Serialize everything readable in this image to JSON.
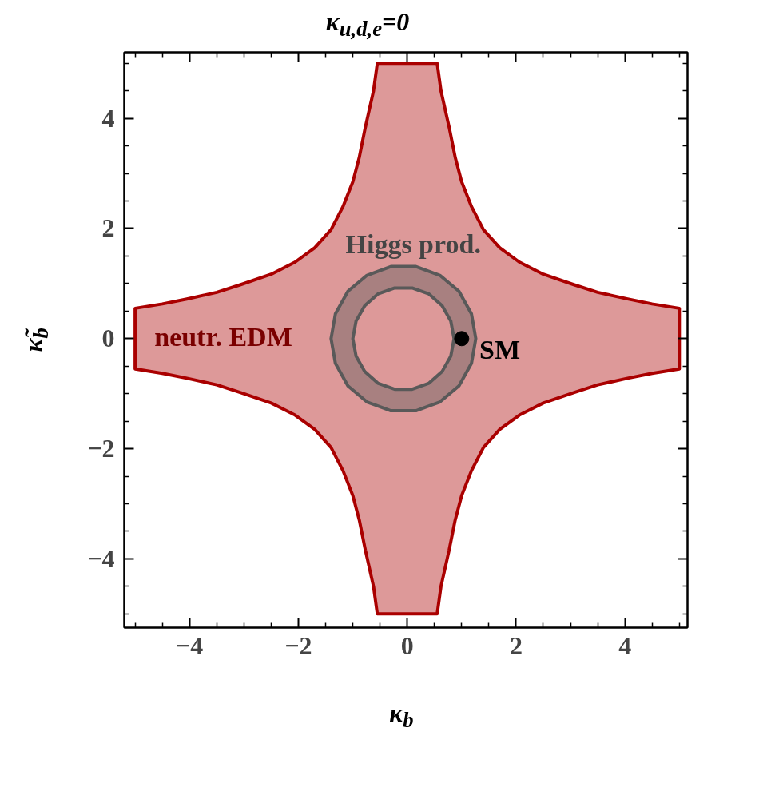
{
  "chart_data": {
    "type": "area",
    "title": "κ$_{u,d,e}$=0",
    "xlabel": "κ$_{b}$",
    "ylabel": "κ̃$_{b}$",
    "xlim": [
      -5.2,
      5.15
    ],
    "ylim": [
      -5.25,
      5.2
    ],
    "xticks": [
      {
        "value": -4,
        "label": "−4"
      },
      {
        "value": -2,
        "label": "−2"
      },
      0,
      2,
      4,
      {
        "value": -5,
        "label": null
      },
      {
        "value": -4.5,
        "label": null
      },
      {
        "value": -3.5,
        "label": null
      },
      {
        "value": -3,
        "label": null
      },
      {
        "value": -2.5,
        "label": null
      },
      {
        "value": -1.5,
        "label": null
      },
      {
        "value": -1,
        "label": null
      },
      {
        "value": -0.5,
        "label": null
      },
      {
        "value": 0.5,
        "label": null
      },
      {
        "value": 1,
        "label": null
      },
      {
        "value": 1.5,
        "label": null
      },
      {
        "value": 2.5,
        "label": null
      },
      {
        "value": 3,
        "label": null
      },
      {
        "value": 3.5,
        "label": null
      },
      {
        "value": 4.5,
        "label": null
      },
      {
        "value": 5,
        "label": null
      }
    ],
    "yticks": [
      {
        "value": -4,
        "label": "−4"
      },
      {
        "value": -2,
        "label": "−2"
      },
      0,
      2,
      4,
      {
        "value": -5,
        "label": null
      },
      {
        "value": -4.5,
        "label": null
      },
      {
        "value": -3.5,
        "label": null
      },
      {
        "value": -3,
        "label": null
      },
      {
        "value": -2.5,
        "label": null
      },
      {
        "value": -1.5,
        "label": null
      },
      {
        "value": -1,
        "label": null
      },
      {
        "value": -0.5,
        "label": null
      },
      {
        "value": 0.5,
        "label": null
      },
      {
        "value": 1,
        "label": null
      },
      {
        "value": 1.5,
        "label": null
      },
      {
        "value": 2.5,
        "label": null
      },
      {
        "value": 3,
        "label": null
      },
      {
        "value": 3.5,
        "label": null
      },
      {
        "value": 4.5,
        "label": null
      },
      {
        "value": 5,
        "label": null
      }
    ],
    "grid": false,
    "series": [
      {
        "color": "#aa0000",
        "x": [
          -0.55,
          0.55,
          0.62,
          0.77,
          0.88,
          1.0,
          1.18,
          1.4,
          1.7,
          2.06,
          2.5,
          3.06,
          3.5,
          4.05,
          4.5,
          5,
          5,
          4.5,
          4.05,
          3.5,
          3.06,
          2.5,
          2.06,
          1.7,
          1.4,
          1.18,
          1.0,
          0.88,
          0.77,
          0.62,
          0.55,
          -0.55,
          -0.62,
          -0.77,
          -0.88,
          -1.0,
          -1.18,
          -1.4,
          -1.7,
          -2.06,
          -2.5,
          -3.06,
          -3.5,
          -4.05,
          -4.5,
          -5,
          -5,
          -4.5,
          -4.05,
          -3.5,
          -3.06,
          -2.5,
          -2.06,
          -1.7,
          -1.4,
          -1.18,
          -1.0,
          -0.88,
          -0.77,
          -0.62
        ],
        "values": [
          5,
          5,
          4.5,
          3.84,
          3.3,
          2.85,
          2.4,
          1.98,
          1.65,
          1.39,
          1.17,
          0.98,
          0.84,
          0.72,
          0.63,
          0.55,
          -0.55,
          -0.63,
          -0.72,
          -0.84,
          -0.98,
          -1.17,
          -1.39,
          -1.65,
          -1.98,
          -2.4,
          -2.85,
          -3.3,
          -3.84,
          -4.5,
          -5,
          -5,
          -4.5,
          -3.84,
          -3.3,
          -2.85,
          -2.4,
          -1.98,
          -1.65,
          -1.39,
          -1.17,
          -0.98,
          -0.84,
          -0.72,
          -0.63,
          -0.55,
          0.55,
          0.63,
          0.72,
          0.84,
          0.98,
          1.17,
          1.39,
          1.65,
          1.98,
          2.4,
          2.85,
          3.3,
          3.84,
          4.5
        ]
      },
      {
        "color": "#595959",
        "x": [
          1.26,
          1.18,
          0.95,
          0.6,
          0.16,
          -0.3,
          -0.74,
          -1.09,
          -1.32,
          -1.4,
          -1.32,
          -1.09,
          -0.74,
          -0.3,
          0.16,
          0.6,
          0.95,
          1.18,
          null,
          0.86,
          0.8,
          0.64,
          0.4,
          0.09,
          -0.23,
          -0.54,
          -0.78,
          -0.94,
          -1.0,
          -0.94,
          -0.78,
          -0.54,
          -0.23,
          0.09,
          0.4,
          0.64,
          0.8
        ],
        "values": [
          0,
          0.45,
          0.86,
          1.15,
          1.31,
          1.31,
          1.15,
          0.86,
          0.45,
          0,
          -0.45,
          -0.86,
          -1.15,
          -1.31,
          -1.31,
          -1.15,
          -0.86,
          -0.45,
          null,
          0,
          0.32,
          0.6,
          0.81,
          0.92,
          0.92,
          0.81,
          0.6,
          0.32,
          0,
          -0.32,
          -0.6,
          -0.81,
          -0.92,
          -0.92,
          -0.81,
          -0.6,
          -0.32
        ]
      },
      {
        "type": "scatter",
        "color": "#000000",
        "x": [
          1
        ],
        "values": [
          0
        ],
        "marker": "circle"
      }
    ],
    "annotations": [
      "neutr. EDM",
      "Higgs prod.",
      "SM"
    ]
  }
}
